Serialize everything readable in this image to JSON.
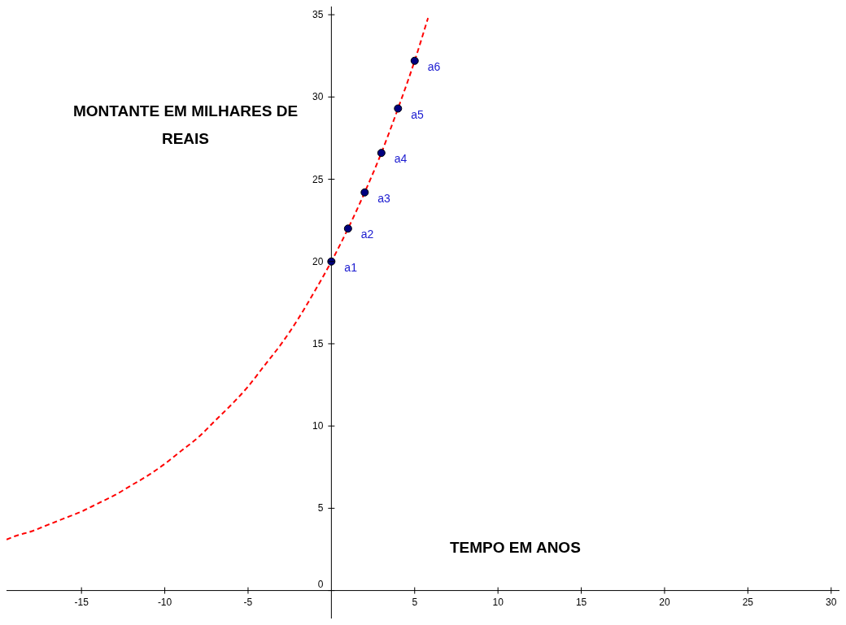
{
  "chart_data": {
    "type": "scatter",
    "xlabel": "TEMPO EM ANOS",
    "ylabel": "MONTANTE EM MILHARES DE REAIS",
    "xlim": [
      -19.5,
      30.5
    ],
    "ylim": [
      -1.7,
      35.5
    ],
    "xticks": [
      -15,
      -10,
      -5,
      5,
      10,
      15,
      20,
      25,
      30
    ],
    "yticks": [
      0,
      5,
      10,
      15,
      20,
      25,
      30,
      35
    ],
    "grid": false,
    "legend": false,
    "series": [
      {
        "type": "line",
        "color": "#ff0000",
        "line_style": "dashed",
        "marker": "none",
        "x": [
          -19.5,
          -19,
          -18,
          -17,
          -16,
          -15,
          -14,
          -13,
          -12,
          -11,
          -10,
          -9,
          -8,
          -7,
          -6,
          -5,
          -4,
          -3,
          -2,
          -1,
          0,
          1,
          2,
          3,
          4,
          5,
          5.8
        ],
        "values": [
          3.1,
          3.3,
          3.6,
          4.0,
          4.4,
          4.8,
          5.3,
          5.8,
          6.4,
          7.0,
          7.7,
          8.5,
          9.3,
          10.3,
          11.3,
          12.4,
          13.7,
          15.0,
          16.5,
          18.2,
          20,
          22,
          24.2,
          26.6,
          29.3,
          32.2,
          34.8
        ]
      },
      {
        "type": "scatter",
        "color": "#00007f",
        "marker": "circle",
        "x": [
          0,
          1,
          2,
          3,
          4,
          5
        ],
        "values": [
          20,
          22,
          24.2,
          26.6,
          29.3,
          32.2
        ]
      }
    ],
    "annotations": [
      {
        "text": "a1",
        "x": 0,
        "y": 20
      },
      {
        "text": "a2",
        "x": 1,
        "y": 22
      },
      {
        "text": "a3",
        "x": 2,
        "y": 24.2
      },
      {
        "text": "a4",
        "x": 3,
        "y": 26.6
      },
      {
        "text": "a5",
        "x": 4,
        "y": 29.3
      },
      {
        "text": "a6",
        "x": 5,
        "y": 32.2
      }
    ]
  }
}
